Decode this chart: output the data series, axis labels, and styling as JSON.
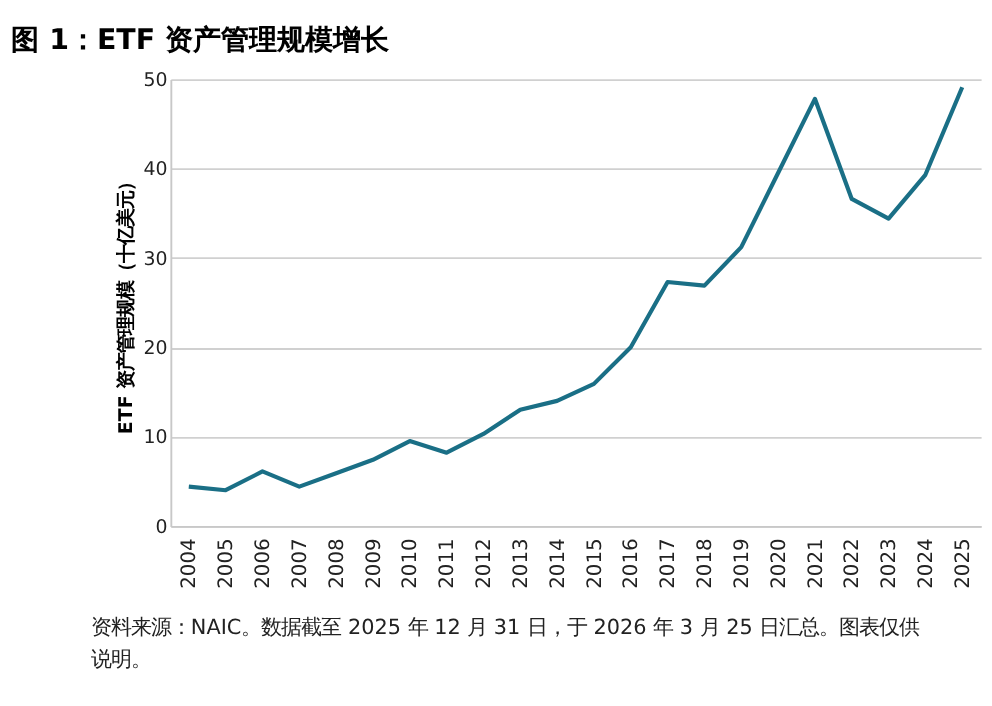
{
  "chart_data": {
    "type": "line",
    "title": "图 1：ETF 资产管理规模增长",
    "ylabel": "ETF 资产管理规模（十亿美元）",
    "categories": [
      "2004",
      "2005",
      "2006",
      "2007",
      "2008",
      "2009",
      "2010",
      "2011",
      "2012",
      "2013",
      "2014",
      "2015",
      "2016",
      "2017",
      "2018",
      "2019",
      "2020",
      "2021",
      "2022",
      "2023",
      "2024",
      "2025"
    ],
    "series": [
      {
        "color": "#1a6f86",
        "values": [
          4.4,
          4.0,
          6.1,
          4.4,
          5.9,
          7.4,
          9.5,
          8.2,
          10.3,
          13.0,
          14.0,
          15.9,
          20.0,
          27.3,
          26.9,
          31.2,
          39.5,
          47.8,
          36.6,
          34.4,
          39.3,
          49.1
        ]
      }
    ],
    "ylim": [
      0,
      50
    ],
    "yticks": [
      0,
      10,
      20,
      30,
      40,
      50
    ],
    "grid": "y",
    "line_style": "solid",
    "marker": "none",
    "annotations": [
      "资料来源：NAIC。数据截至 2025 年 12 月 31 日，于 2026 年 3 月 25 日汇总。图表仅供说明。"
    ]
  }
}
